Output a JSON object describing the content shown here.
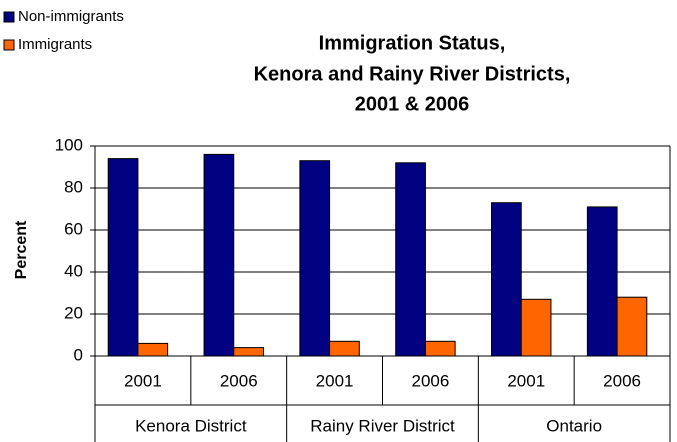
{
  "chart_data": {
    "type": "bar",
    "title": [
      "Immigration Status,",
      "Kenora and Rainy River Districts,",
      "2001 & 2006"
    ],
    "y_label": "Percent",
    "categories": [
      "2001",
      "2006",
      "2001",
      "2006",
      "2001",
      "2006"
    ],
    "groups": [
      "Kenora District",
      "Rainy River District",
      "Ontario"
    ],
    "series": [
      {
        "name": "Non-immigrants",
        "color": "#000080",
        "values": [
          94,
          96,
          93,
          92,
          73,
          71
        ]
      },
      {
        "name": "Immigrants",
        "color": "#ff6600",
        "values": [
          6,
          4,
          7,
          7,
          27,
          28
        ]
      }
    ],
    "ylim": [
      0,
      100
    ],
    "yticks": [
      0,
      20,
      40,
      60,
      80,
      100
    ],
    "grid": true,
    "legend": "top-left"
  }
}
